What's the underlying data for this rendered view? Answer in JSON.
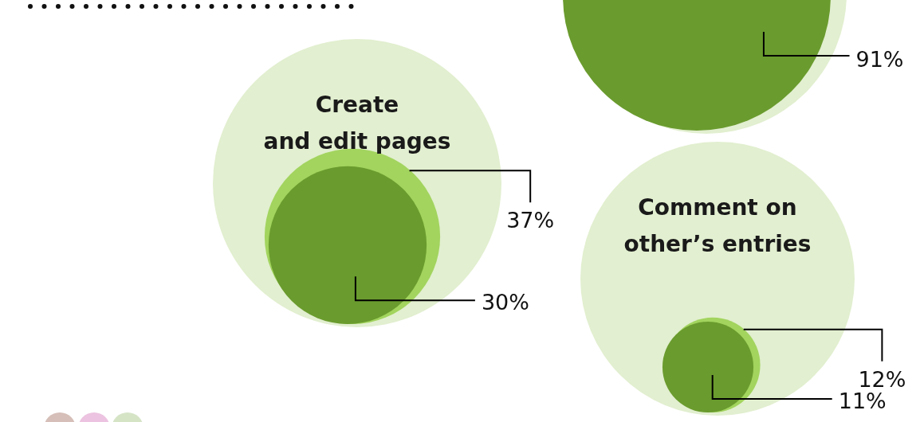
{
  "chart_data": [
    {
      "type": "other",
      "values": [
        91
      ],
      "value_labels": [
        "91%"
      ],
      "colors": [
        "#6a9b2e"
      ]
    },
    {
      "type": "other",
      "title": "Create\nand edit pages",
      "values": [
        37,
        30
      ],
      "value_labels": [
        "37%",
        "30%"
      ],
      "colors": [
        "#a2d45e",
        "#6a9b2e"
      ]
    },
    {
      "type": "other",
      "title": "Comment on\nother’s entries",
      "values": [
        12,
        11
      ],
      "value_labels": [
        "12%",
        "11%"
      ],
      "colors": [
        "#a2d45e",
        "#6a9b2e"
      ]
    }
  ]
}
